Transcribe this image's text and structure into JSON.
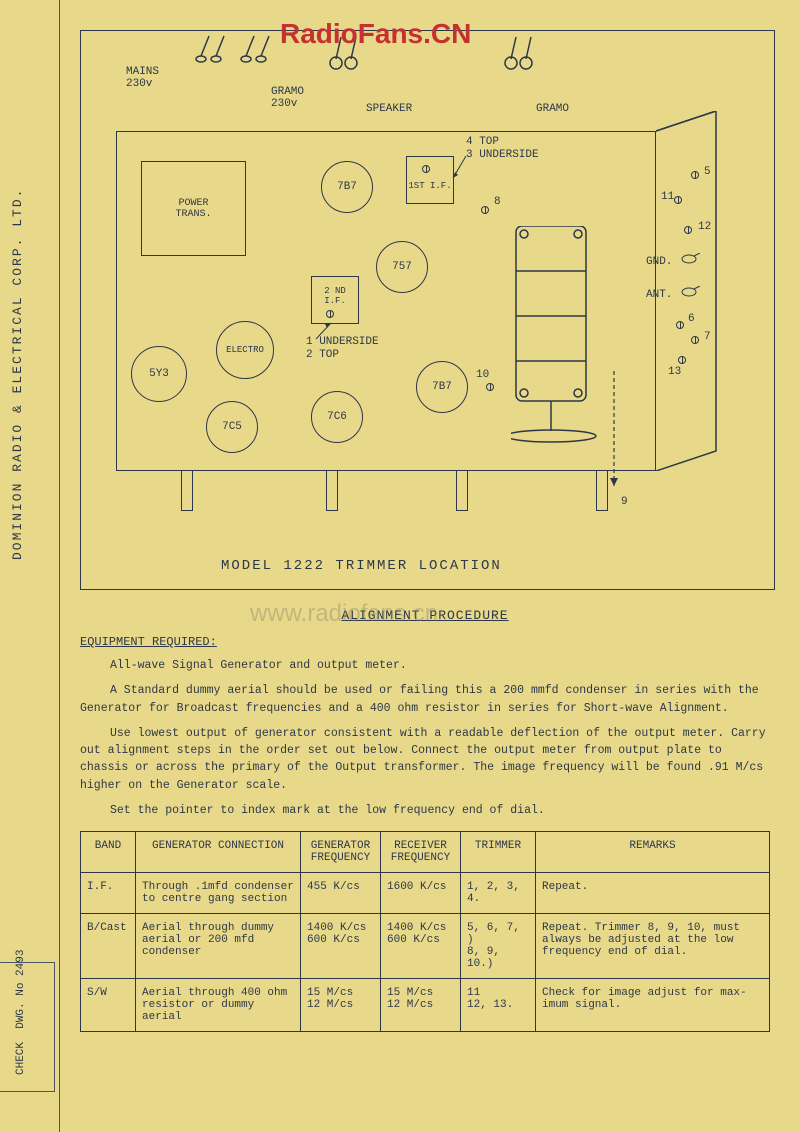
{
  "watermarks": {
    "red": "RadioFans.CN",
    "gray": "www.radiofans.cn"
  },
  "left_margin": {
    "company": "DOMINION RADIO & ELECTRICAL CORP. LTD.",
    "check": "CHECK",
    "dwg": "DWG. No 2493"
  },
  "diagram": {
    "title": "MODEL 1222   TRIMMER LOCATION",
    "top_connectors": {
      "mains": "MAINS",
      "mains_v": "230v",
      "gramo1": "GRAMO",
      "gramo1_v": "230v",
      "speaker": "SPEAKER",
      "gramo2": "GRAMO"
    },
    "power_trans": "POWER\nTRANS.",
    "tubes": {
      "t_7b7_1": "7B7",
      "t_757": "757",
      "t_5y3": "5Y3",
      "t_electro": "ELECTRO",
      "t_7c5": "7C5",
      "t_7c6": "7C6",
      "t_7b7_2": "7B7"
    },
    "if_boxes": {
      "first": "1ST I.F.",
      "second": "2 ND I.F."
    },
    "annotations": {
      "top_under_1": "4 TOP",
      "top_under_2": "3 UNDERSIDE",
      "under_top_1": "1 UNDERSIDE",
      "under_top_2": "2 TOP",
      "num8": "8",
      "num10": "10",
      "num9": "9",
      "num5": "5",
      "num11": "11",
      "num12": "12",
      "num6": "6",
      "num7": "7",
      "num13": "13",
      "gnd": "GND.",
      "ant": "ANT."
    }
  },
  "procedure": {
    "title": "ALIGNMENT PROCEDURE",
    "equip_heading": "EQUIPMENT REQUIRED:",
    "p1": "All-wave Signal Generator and output meter.",
    "p2": "A Standard dummy aerial should be used or failing this a 200 mmfd condenser in series with the Generator for Broadcast frequencies and a 400 ohm resistor in series for Short-wave Alignment.",
    "p3": "Use lowest output of generator consistent with a readable deflection of the output meter.     Carry out alignment steps in the order set out below.   Connect the output meter from output plate to chassis or across the primary of the Output transformer.     The image frequency will be found .91 M/cs higher on the Generator scale.",
    "p4": "Set the pointer to index mark at the low frequency end of dial."
  },
  "table": {
    "columns": [
      "BAND",
      "GENERATOR CONNECTION",
      "GENERATOR FREQUENCY",
      "RECEIVER FREQUENCY",
      "TRIMMER",
      "REMARKS"
    ],
    "rows": [
      {
        "band": "I.F.",
        "conn": "Through .1mfd condenser to centre gang section",
        "gfreq": "455 K/cs",
        "rfreq": "1600 K/cs",
        "trim": "1, 2, 3, 4.",
        "remarks": "Repeat."
      },
      {
        "band": "B/Cast",
        "conn": "Aerial through dummy aerial or 200 mfd condenser",
        "gfreq": "1400 K/cs\n600 K/cs",
        "rfreq": "1400 K/cs\n600 K/cs",
        "trim": "5, 6, 7, )\n8, 9, 10.)",
        "remarks": "Repeat.   Trimmer 8, 9, 10, must always be adjusted at the low frequency end of dial."
      },
      {
        "band": "S/W",
        "conn": "Aerial through 400 ohm resistor or dummy aerial",
        "gfreq": "15 M/cs\n12 M/cs",
        "rfreq": "15 M/cs\n12 M/cs",
        "trim": "11\n12, 13.",
        "remarks": "Check for image adjust for max-imum signal."
      }
    ]
  },
  "colors": {
    "bg": "#e8d98a",
    "line": "#2d3748",
    "red": "#c53030"
  }
}
